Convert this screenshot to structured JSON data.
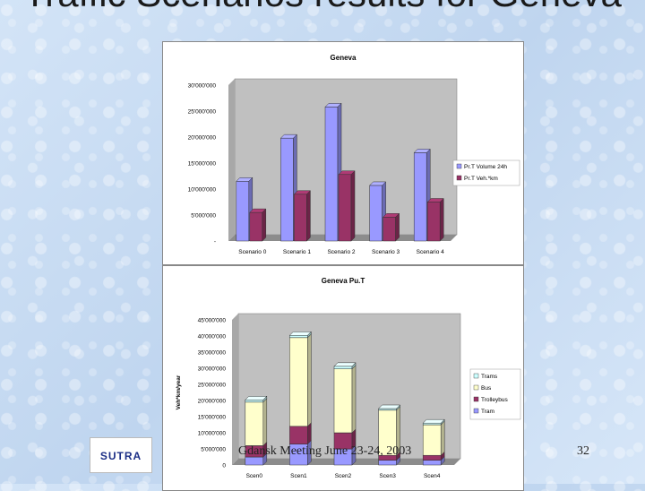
{
  "slide": {
    "title": "Traffic Scenarios results for Geneva",
    "footer": "Gdansk Meeting June 23-24, 2003",
    "page_number": "32",
    "logo_text": "SUTRA"
  },
  "colors": {
    "pri_volume": "#9999ff",
    "pri_vehkm": "#993366",
    "trains": "#ccffff",
    "bus": "#ffffcc",
    "trolleybus": "#993366",
    "tram": "#9999ff",
    "plot_bg": "#c0c0c0"
  },
  "chart_data": [
    {
      "type": "bar",
      "title": "Geneva",
      "xlabel": "",
      "ylabel": "",
      "categories": [
        "Scenario 0",
        "Scenario 1",
        "Scenario 2",
        "Scenario 3",
        "Scenario 4"
      ],
      "ylim": [
        0,
        30000000
      ],
      "yticks": [
        "-",
        "5'000'000",
        "10'000'000",
        "15'000'000",
        "20'000'000",
        "25'000'000",
        "30'000'000"
      ],
      "series": [
        {
          "name": "Pr.T Volume 24h",
          "values": [
            11500000,
            19800000,
            25800000,
            10700000,
            17000000
          ]
        },
        {
          "name": "Pr.T Veh.*km",
          "values": [
            5500000,
            9000000,
            12800000,
            4600000,
            7500000
          ]
        }
      ],
      "legend": "right",
      "grid": false
    },
    {
      "type": "bar",
      "stacked": true,
      "title": "Geneva Pu.T",
      "xlabel": "",
      "ylabel": "Veh*km/year",
      "categories": [
        "Scen0",
        "Scen1",
        "Scen2",
        "Scen3",
        "Scen4"
      ],
      "ylim": [
        0,
        45000000
      ],
      "yticks": [
        "0",
        "5'000'000",
        "10'000'000",
        "15'000'000",
        "20'000'000",
        "25'000'000",
        "30'000'000",
        "35'000'000",
        "40'000'000",
        "45'000'000"
      ],
      "series": [
        {
          "name": "Trams",
          "values": [
            700000,
            700000,
            800000,
            500000,
            500000
          ]
        },
        {
          "name": "Bus",
          "values": [
            13500000,
            27500000,
            19800000,
            14000000,
            9500000
          ]
        },
        {
          "name": "Trolleybus",
          "values": [
            3500000,
            5500000,
            5000000,
            1500000,
            1500000
          ]
        },
        {
          "name": "Tram",
          "values": [
            2500000,
            6500000,
            5000000,
            1500000,
            1500000
          ]
        }
      ],
      "legend": "right",
      "grid": false
    }
  ]
}
